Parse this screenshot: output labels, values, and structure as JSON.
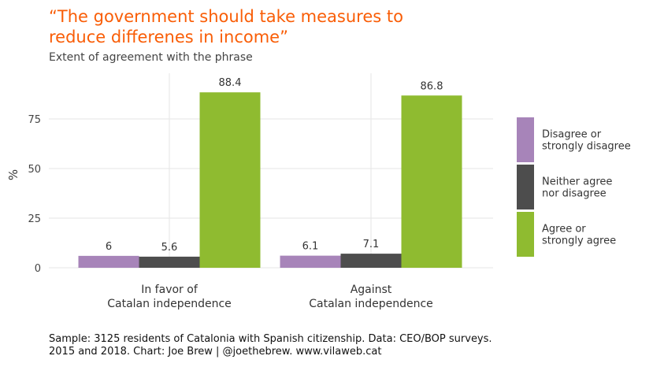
{
  "chart_data": {
    "type": "bar",
    "title": "“The government should take measures to\nreduce differenes in income”",
    "subtitle": "Extent of agreement with the phrase",
    "ylabel": "%",
    "xlabel": "",
    "ylim": [
      0,
      97
    ],
    "yticks": [
      0,
      25,
      50,
      75
    ],
    "categories": [
      [
        "In favor of",
        "Catalan independence"
      ],
      [
        "Against",
        "Catalan independence"
      ]
    ],
    "series": [
      {
        "name": [
          "Disagree or",
          "strongly disagree"
        ],
        "color": "#a784b9",
        "values": [
          6,
          6.1
        ],
        "labels": [
          "6",
          "6.1"
        ]
      },
      {
        "name": [
          "Neither agree",
          "nor disagree"
        ],
        "color": "#4d4d4d",
        "values": [
          5.6,
          7.1
        ],
        "labels": [
          "5.6",
          "7.1"
        ]
      },
      {
        "name": [
          "Agree or",
          "strongly agree"
        ],
        "color": "#8fbb30",
        "values": [
          88.4,
          86.8
        ],
        "labels": [
          "88.4",
          "86.8"
        ]
      }
    ],
    "grid": true,
    "legend_position": "right",
    "caption": "Sample: 3125 residents of Catalonia with Spanish citizenship. Data: CEO/BOP surveys.\n2015 and 2018. Chart: Joe Brew | @joethebrew. www.vilaweb.cat"
  }
}
